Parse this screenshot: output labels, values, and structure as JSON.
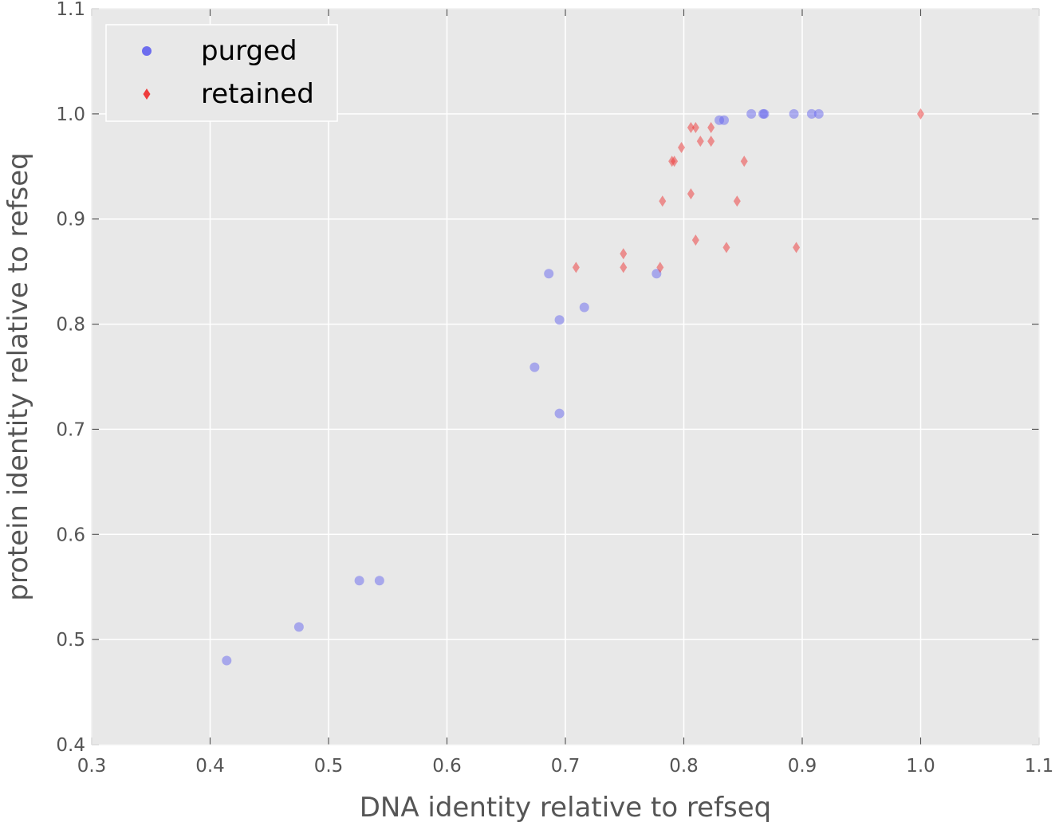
{
  "chart_data": {
    "type": "scatter",
    "xlabel": "DNA identity relative to refseq",
    "ylabel": "protein identity relative to refseq",
    "xlim": [
      0.3,
      1.1
    ],
    "ylim": [
      0.4,
      1.1
    ],
    "xticks": [
      "0.3",
      "0.4",
      "0.5",
      "0.6",
      "0.7",
      "0.8",
      "0.9",
      "1.0",
      "1.1"
    ],
    "yticks": [
      "0.4",
      "0.5",
      "0.6",
      "0.7",
      "0.8",
      "0.9",
      "1.0",
      "1.1"
    ],
    "grid": true,
    "legend_position": "top-left",
    "series": [
      {
        "name": "purged",
        "marker": "circle",
        "color": "#6666ee",
        "points": [
          [
            0.414,
            0.48
          ],
          [
            0.475,
            0.512
          ],
          [
            0.526,
            0.556
          ],
          [
            0.543,
            0.556
          ],
          [
            0.674,
            0.759
          ],
          [
            0.686,
            0.848
          ],
          [
            0.695,
            0.804
          ],
          [
            0.695,
            0.715
          ],
          [
            0.716,
            0.816
          ],
          [
            0.777,
            0.848
          ],
          [
            0.83,
            0.994
          ],
          [
            0.834,
            0.994
          ],
          [
            0.857,
            1.0
          ],
          [
            0.867,
            1.0
          ],
          [
            0.868,
            1.0
          ],
          [
            0.893,
            1.0
          ],
          [
            0.908,
            1.0
          ],
          [
            0.914,
            1.0
          ]
        ]
      },
      {
        "name": "retained",
        "marker": "diamond",
        "color": "#ee3333",
        "points": [
          [
            0.709,
            0.854
          ],
          [
            0.749,
            0.867
          ],
          [
            0.749,
            0.854
          ],
          [
            0.78,
            0.854
          ],
          [
            0.782,
            0.917
          ],
          [
            0.79,
            0.955
          ],
          [
            0.792,
            0.955
          ],
          [
            0.798,
            0.968
          ],
          [
            0.806,
            0.987
          ],
          [
            0.806,
            0.924
          ],
          [
            0.81,
            0.987
          ],
          [
            0.81,
            0.88
          ],
          [
            0.814,
            0.974
          ],
          [
            0.823,
            0.974
          ],
          [
            0.823,
            0.987
          ],
          [
            0.836,
            0.873
          ],
          [
            0.845,
            0.917
          ],
          [
            0.851,
            0.955
          ],
          [
            0.895,
            0.873
          ],
          [
            1.0,
            1.0
          ]
        ]
      }
    ]
  }
}
